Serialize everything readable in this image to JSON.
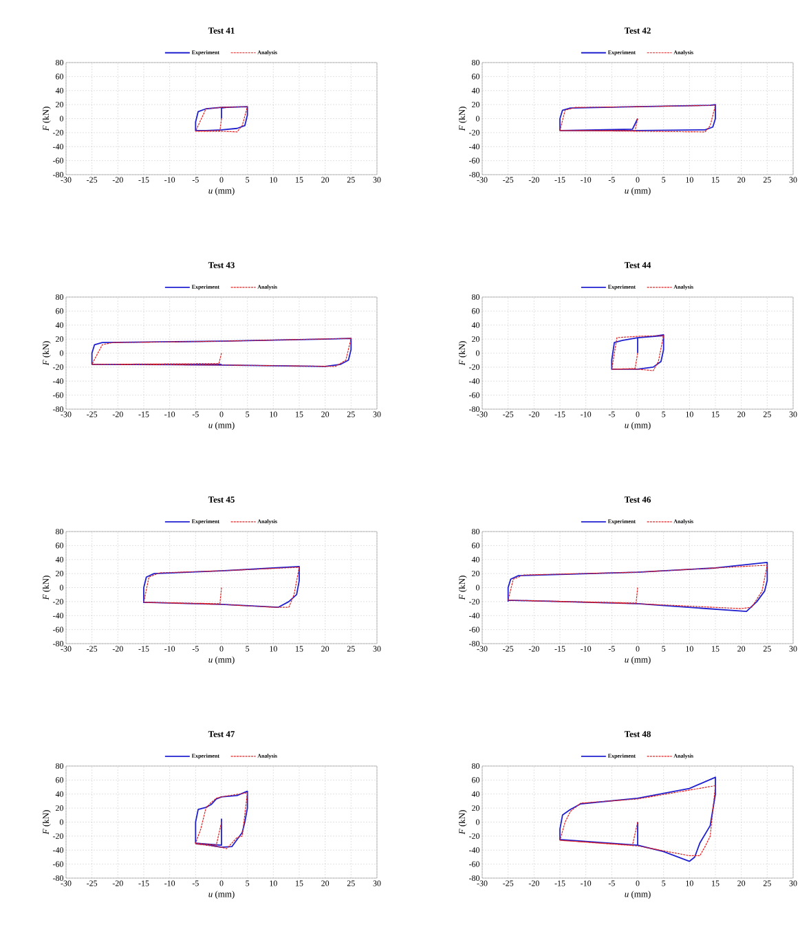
{
  "chart_data": [
    {
      "type": "line",
      "title": "Test 41",
      "xlabel": "*u* (mm)",
      "ylabel": "*F* (kN)",
      "xlim": [
        -30,
        30
      ],
      "ylim": [
        -80,
        80
      ],
      "xticks": [
        -30,
        -25,
        -20,
        -15,
        -10,
        -5,
        0,
        5,
        10,
        15,
        20,
        25,
        30
      ],
      "yticks": [
        -80,
        -60,
        -40,
        -20,
        0,
        20,
        40,
        60,
        80
      ],
      "grid": true,
      "legend": "top",
      "series": [
        {
          "name": "Experiment",
          "color": "#1f1fd0",
          "line_style": "solid",
          "x": [
            0,
            0,
            1,
            5,
            5,
            4.5,
            3,
            0,
            -3,
            -5,
            -5,
            -4.5,
            -3,
            0,
            5
          ],
          "values": [
            0,
            15,
            16,
            17,
            5,
            -10,
            -14,
            -16,
            -17,
            -17,
            -5,
            10,
            14,
            16,
            17
          ]
        },
        {
          "name": "Analysis",
          "color": "#e02020",
          "line_style": "dashed",
          "x": [
            0,
            -0.3,
            -5,
            -3,
            0,
            5,
            4,
            3,
            0,
            -5
          ],
          "values": [
            0,
            -17,
            -18,
            14,
            16,
            17,
            -10,
            -19,
            -18,
            -18
          ]
        }
      ]
    },
    {
      "type": "line",
      "title": "Test 42",
      "xlabel": "*u* (mm)",
      "ylabel": "*F* (kN)",
      "xlim": [
        -30,
        30
      ],
      "ylim": [
        -80,
        80
      ],
      "xticks": [
        -30,
        -25,
        -20,
        -15,
        -10,
        -5,
        0,
        5,
        10,
        15,
        20,
        25,
        30
      ],
      "yticks": [
        -80,
        -60,
        -40,
        -20,
        0,
        20,
        40,
        60,
        80
      ],
      "grid": true,
      "legend": "top",
      "series": [
        {
          "name": "Experiment",
          "color": "#1f1fd0",
          "line_style": "solid",
          "x": [
            0,
            -1,
            -15,
            -15,
            -14.5,
            -13,
            0,
            14,
            15,
            15,
            14.5,
            13,
            0,
            -15
          ],
          "values": [
            0,
            -15,
            -17,
            0,
            12,
            15,
            17,
            19,
            20,
            0,
            -12,
            -16,
            -17,
            -17
          ]
        },
        {
          "name": "Analysis",
          "color": "#e02020",
          "line_style": "dashed",
          "x": [
            0,
            -0.5,
            -15,
            -14,
            -12,
            0,
            15,
            14,
            13,
            0,
            -15
          ],
          "values": [
            0,
            -17,
            -17,
            12,
            16,
            17,
            19,
            -10,
            -19,
            -18,
            -17
          ]
        }
      ]
    },
    {
      "type": "line",
      "title": "Test 43",
      "xlabel": "*u* (mm)",
      "ylabel": "*F* (kN)",
      "xlim": [
        -30,
        30
      ],
      "ylim": [
        -80,
        80
      ],
      "xticks": [
        -30,
        -25,
        -20,
        -15,
        -10,
        -5,
        0,
        5,
        10,
        15,
        20,
        25,
        30
      ],
      "yticks": [
        -80,
        -60,
        -40,
        -20,
        0,
        20,
        40,
        60,
        80
      ],
      "grid": true,
      "legend": "top",
      "series": [
        {
          "name": "Experiment",
          "color": "#1f1fd0",
          "line_style": "solid",
          "x": [
            0,
            -25,
            -25,
            -24.5,
            -23,
            0,
            20,
            25,
            25,
            24.5,
            23,
            20,
            0,
            -25
          ],
          "values": [
            -16,
            -16,
            0,
            12,
            15,
            17,
            20,
            21,
            5,
            -10,
            -16,
            -19,
            -17,
            -16
          ]
        },
        {
          "name": "Analysis",
          "color": "#e02020",
          "line_style": "dashed",
          "x": [
            0,
            -0.5,
            -25,
            -23,
            -21,
            0,
            25,
            24,
            22,
            0,
            -25
          ],
          "values": [
            0,
            -15,
            -16,
            12,
            15,
            17,
            21,
            -10,
            -19,
            -17,
            -16
          ]
        }
      ]
    },
    {
      "type": "line",
      "title": "Test 44",
      "xlabel": "*u* (mm)",
      "ylabel": "*F* (kN)",
      "xlim": [
        -30,
        30
      ],
      "ylim": [
        -80,
        80
      ],
      "xticks": [
        -30,
        -25,
        -20,
        -15,
        -10,
        -5,
        0,
        5,
        10,
        15,
        20,
        25,
        30
      ],
      "yticks": [
        -80,
        -60,
        -40,
        -20,
        0,
        20,
        40,
        60,
        80
      ],
      "grid": true,
      "legend": "top",
      "series": [
        {
          "name": "Experiment",
          "color": "#1f1fd0",
          "line_style": "solid",
          "x": [
            0,
            0,
            3,
            5,
            5,
            4.5,
            3,
            0,
            -5,
            -5,
            -4.5,
            -3,
            0,
            5
          ],
          "values": [
            0,
            22,
            24,
            26,
            5,
            -12,
            -20,
            -23,
            -23,
            -10,
            15,
            18,
            22,
            25
          ]
        },
        {
          "name": "Analysis",
          "color": "#e02020",
          "line_style": "dashed",
          "x": [
            0,
            -0.5,
            -5,
            -4,
            0,
            5,
            4,
            3,
            0,
            -5
          ],
          "values": [
            0,
            -22,
            -23,
            22,
            24,
            25,
            -12,
            -25,
            -23,
            -23
          ]
        }
      ]
    },
    {
      "type": "line",
      "title": "Test 45",
      "xlabel": "*u* (mm)",
      "ylabel": "*F* (kN)",
      "xlim": [
        -30,
        30
      ],
      "ylim": [
        -80,
        80
      ],
      "xticks": [
        -30,
        -25,
        -20,
        -15,
        -10,
        -5,
        0,
        5,
        10,
        15,
        20,
        25,
        30
      ],
      "yticks": [
        -80,
        -60,
        -40,
        -20,
        0,
        20,
        40,
        60,
        80
      ],
      "grid": true,
      "legend": "top",
      "series": [
        {
          "name": "Experiment",
          "color": "#1f1fd0",
          "line_style": "solid",
          "x": [
            -15,
            -15,
            -14.5,
            -13,
            0,
            10,
            15,
            15,
            14.5,
            13,
            11,
            0,
            -15
          ],
          "values": [
            -22,
            0,
            15,
            20,
            24,
            28,
            30,
            10,
            -10,
            -20,
            -28,
            -24,
            -21
          ]
        },
        {
          "name": "Analysis",
          "color": "#e02020",
          "line_style": "dashed",
          "x": [
            0,
            -0.3,
            -15,
            -14,
            -12,
            0,
            15,
            14,
            13,
            10,
            0,
            -15
          ],
          "values": [
            0,
            -23,
            -21,
            15,
            21,
            24,
            29,
            -10,
            -28,
            -28,
            -24,
            -21
          ]
        }
      ]
    },
    {
      "type": "line",
      "title": "Test 46",
      "xlabel": "*u* (mm)",
      "ylabel": "*F* (kN)",
      "xlim": [
        -30,
        30
      ],
      "ylim": [
        -80,
        80
      ],
      "xticks": [
        -30,
        -25,
        -20,
        -15,
        -10,
        -5,
        0,
        5,
        10,
        15,
        20,
        25,
        30
      ],
      "yticks": [
        -80,
        -60,
        -40,
        -20,
        0,
        20,
        40,
        60,
        80
      ],
      "grid": true,
      "legend": "top",
      "series": [
        {
          "name": "Experiment",
          "color": "#1f1fd0",
          "line_style": "solid",
          "x": [
            -25,
            -25,
            -24.5,
            -23,
            0,
            15,
            25,
            25,
            24.5,
            23,
            21,
            0,
            -25
          ],
          "values": [
            -20,
            0,
            12,
            17,
            22,
            28,
            36,
            10,
            -5,
            -20,
            -34,
            -23,
            -18
          ]
        },
        {
          "name": "Analysis",
          "color": "#e02020",
          "line_style": "dashed",
          "x": [
            0,
            -0.3,
            -25,
            -24,
            -22,
            0,
            25,
            24,
            22,
            20,
            0,
            -25
          ],
          "values": [
            0,
            -22,
            -18,
            12,
            18,
            22,
            32,
            -5,
            -28,
            -30,
            -23,
            -18
          ]
        }
      ]
    },
    {
      "type": "line",
      "title": "Test 47",
      "xlabel": "*u* (mm)",
      "ylabel": "*F* (kN)",
      "xlim": [
        -30,
        30
      ],
      "ylim": [
        -80,
        80
      ],
      "xticks": [
        -30,
        -25,
        -20,
        -15,
        -10,
        -5,
        0,
        5,
        10,
        15,
        20,
        25,
        30
      ],
      "yticks": [
        -80,
        -60,
        -40,
        -20,
        0,
        20,
        40,
        60,
        80
      ],
      "grid": true,
      "legend": "top",
      "series": [
        {
          "name": "Experiment",
          "color": "#1f1fd0",
          "line_style": "solid",
          "x": [
            0,
            0,
            -5,
            -5,
            -4.5,
            -3,
            -2,
            -1,
            0,
            3,
            5,
            5,
            4.5,
            4,
            2,
            0,
            -3,
            -5
          ],
          "values": [
            5,
            -33,
            -30,
            0,
            18,
            21,
            25,
            33,
            36,
            38,
            44,
            20,
            0,
            -15,
            -35,
            -36,
            -32,
            -31
          ]
        },
        {
          "name": "Analysis",
          "color": "#e02020",
          "line_style": "dashed",
          "x": [
            0,
            -1,
            -5,
            -4,
            -3,
            -2,
            -1,
            0,
            5,
            4,
            3,
            1,
            0,
            -5
          ],
          "values": [
            0,
            -33,
            -30,
            -10,
            20,
            28,
            34,
            36,
            42,
            -20,
            -22,
            -38,
            -36,
            -31
          ]
        }
      ]
    },
    {
      "type": "line",
      "title": "Test 48",
      "xlabel": "*u* (mm)",
      "ylabel": "*F* (kN)",
      "xlim": [
        -30,
        30
      ],
      "ylim": [
        -80,
        80
      ],
      "xticks": [
        -30,
        -25,
        -20,
        -15,
        -10,
        -5,
        0,
        5,
        10,
        15,
        20,
        25,
        30
      ],
      "yticks": [
        -80,
        -60,
        -40,
        -20,
        0,
        20,
        40,
        60,
        80
      ],
      "grid": true,
      "legend": "top",
      "series": [
        {
          "name": "Experiment",
          "color": "#1f1fd0",
          "line_style": "solid",
          "x": [
            0,
            0,
            -15,
            -15,
            -14.5,
            -13,
            -11,
            0,
            10,
            15,
            15,
            14,
            12,
            11,
            10,
            5,
            0
          ],
          "values": [
            0,
            -33,
            -25,
            -10,
            10,
            18,
            26,
            34,
            48,
            64,
            40,
            -5,
            -30,
            -50,
            -56,
            -42,
            -33
          ]
        },
        {
          "name": "Analysis",
          "color": "#e02020",
          "line_style": "dashed",
          "x": [
            0,
            -1,
            -15,
            -14,
            -13,
            -11,
            0,
            15,
            14,
            13,
            12,
            10,
            0,
            -15
          ],
          "values": [
            0,
            -33,
            -26,
            0,
            15,
            27,
            33,
            52,
            -20,
            -35,
            -48,
            -48,
            -34,
            -26
          ]
        }
      ]
    }
  ]
}
